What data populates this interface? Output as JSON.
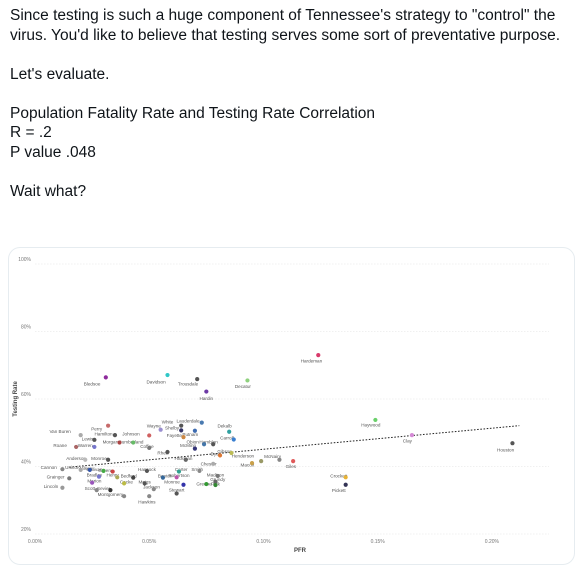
{
  "post": {
    "line1": "Since testing is such a huge component of Tennessee's strategy to \"control\" the virus. You'd like to believe that testing serves some sort of preventative purpose.",
    "line2": "Let's evaluate.",
    "line3": "Population Fatality Rate and Testing Rate Correlation",
    "line4": "R = .2",
    "line5": "P value .048",
    "line6": "Wait what?"
  },
  "chart_data": {
    "type": "scatter",
    "xlabel": "PFR",
    "ylabel": "Testing Rate",
    "xlim": [
      0,
      0.00225
    ],
    "ylim": [
      0.2,
      1.0
    ],
    "x_ticks": [
      0,
      0.0005,
      0.001,
      0.0015,
      0.002
    ],
    "x_tick_labels": [
      "0.00%",
      "0.05%",
      "0.10%",
      "0.15%",
      "0.20%"
    ],
    "y_ticks": [
      0.2,
      0.4,
      0.6,
      0.8,
      1.0
    ],
    "y_tick_labels": [
      "20%",
      "40%",
      "60%",
      "80%",
      "100%"
    ],
    "grid": true,
    "trendline": {
      "style": "dotted",
      "x": [
        0.00015,
        0.00212
      ],
      "y": [
        0.398,
        0.521
      ]
    },
    "points": [
      {
        "name": "Bledsoe",
        "x": 0.00031,
        "y": 0.664,
        "color": "#8e2a9c"
      },
      {
        "name": "Davidson",
        "x": 0.00058,
        "y": 0.671,
        "color": "#2fc7c7"
      },
      {
        "name": "Trousdale",
        "x": 0.00071,
        "y": 0.659,
        "color": "#555555"
      },
      {
        "name": "Decatur",
        "x": 0.00093,
        "y": 0.655,
        "color": "#8fd17e"
      },
      {
        "name": "Hardin",
        "x": 0.00075,
        "y": 0.622,
        "color": "#6d3aa6"
      },
      {
        "name": "Hardeman",
        "x": 0.00124,
        "y": 0.73,
        "color": "#d83a6b"
      },
      {
        "name": "Haywood",
        "x": 0.00149,
        "y": 0.538,
        "color": "#6ad06a"
      },
      {
        "name": "Clay",
        "x": 0.00165,
        "y": 0.493,
        "color": "#d58ad6"
      },
      {
        "name": "Houston",
        "x": 0.00209,
        "y": 0.469,
        "color": "#555555"
      },
      {
        "name": "Crockett",
        "x": 0.00136,
        "y": 0.368,
        "color": "#e8b335"
      },
      {
        "name": "Pickett",
        "x": 0.00136,
        "y": 0.346,
        "color": "#333355"
      },
      {
        "name": "Giles",
        "x": 0.00113,
        "y": 0.416,
        "color": "#e05a5a"
      },
      {
        "name": "McNairy",
        "x": 0.00107,
        "y": 0.42,
        "color": "#888888"
      },
      {
        "name": "Henderson",
        "x": 0.00099,
        "y": 0.416,
        "color": "#999966"
      },
      {
        "name": "Macon",
        "x": 0.00095,
        "y": 0.41,
        "color": "#c9a04a"
      },
      {
        "name": "Carroll",
        "x": 0.00087,
        "y": 0.48,
        "color": "#3a7fd0"
      },
      {
        "name": "Dekalb",
        "x": 0.00085,
        "y": 0.503,
        "color": "#2fa0a0"
      },
      {
        "name": "Lauderdale",
        "x": 0.00073,
        "y": 0.53,
        "color": "#4a7ab0"
      },
      {
        "name": "White",
        "x": 0.00064,
        "y": 0.521,
        "color": "#555555"
      },
      {
        "name": "Shelby",
        "x": 0.00064,
        "y": 0.507,
        "color": "#333366"
      },
      {
        "name": "Putnam",
        "x": 0.0007,
        "y": 0.506,
        "color": "#3d6bb0"
      },
      {
        "name": "Wayne",
        "x": 0.00055,
        "y": 0.509,
        "color": "#9a8fd0"
      },
      {
        "name": "Perry",
        "x": 0.00032,
        "y": 0.521,
        "color": "#c66a6a"
      },
      {
        "name": "Van Buren",
        "x": 0.0002,
        "y": 0.493,
        "color": "#aaaaaa"
      },
      {
        "name": "Hamilton",
        "x": 0.00035,
        "y": 0.493,
        "color": "#555555"
      },
      {
        "name": "Johnson",
        "x": 0.0005,
        "y": 0.492,
        "color": "#d06060"
      },
      {
        "name": "Fayette",
        "x": 0.00065,
        "y": 0.487,
        "color": "#cc8844"
      },
      {
        "name": "Obion",
        "x": 0.00074,
        "y": 0.466,
        "color": "#4477aa"
      },
      {
        "name": "Hamblen",
        "x": 0.00078,
        "y": 0.466,
        "color": "#555555"
      },
      {
        "name": "Lewis",
        "x": 0.00026,
        "y": 0.479,
        "color": "#555555"
      },
      {
        "name": "Morgan",
        "x": 0.00037,
        "y": 0.471,
        "color": "#aa4444"
      },
      {
        "name": "Cumberland",
        "x": 0.00043,
        "y": 0.471,
        "color": "#66bb66"
      },
      {
        "name": "Coffee",
        "x": 0.0005,
        "y": 0.455,
        "color": "#777777"
      },
      {
        "name": "Roane",
        "x": 0.00018,
        "y": 0.458,
        "color": "#aa6666"
      },
      {
        "name": "Warren",
        "x": 0.00026,
        "y": 0.458,
        "color": "#7777cc"
      },
      {
        "name": "Rhea",
        "x": 0.00058,
        "y": 0.443,
        "color": "#555555"
      },
      {
        "name": "McMinn",
        "x": 0.0007,
        "y": 0.453,
        "color": "#333377"
      },
      {
        "name": "Gibson",
        "x": 0.00086,
        "y": 0.44,
        "color": "#bbbb55"
      },
      {
        "name": "Dyer",
        "x": 0.00081,
        "y": 0.433,
        "color": "#dd7733"
      },
      {
        "name": "Anderson",
        "x": 0.00022,
        "y": 0.42,
        "color": "#bbbbbb"
      },
      {
        "name": "Monroe",
        "x": 0.00032,
        "y": 0.42,
        "color": "#555555"
      },
      {
        "name": "Hickman",
        "x": 0.00066,
        "y": 0.42,
        "color": "#666666"
      },
      {
        "name": "Chester",
        "x": 0.00078,
        "y": 0.408,
        "color": "#aaaaaa"
      },
      {
        "name": "Cannon",
        "x": 0.00012,
        "y": 0.392,
        "color": "#888888"
      },
      {
        "name": "Unicoi",
        "x": 0.0002,
        "y": 0.39,
        "color": "#aaaaaa"
      },
      {
        "name": "Wilson",
        "x": 0.00024,
        "y": 0.39,
        "color": "#3355aa"
      },
      {
        "name": "Sullivan",
        "x": 0.0003,
        "y": 0.387,
        "color": "#44aa44"
      },
      {
        "name": "Greene",
        "x": 0.00034,
        "y": 0.385,
        "color": "#cc4444"
      },
      {
        "name": "Hancock",
        "x": 0.00049,
        "y": 0.387,
        "color": "#555555"
      },
      {
        "name": "Carter",
        "x": 0.00063,
        "y": 0.385,
        "color": "#2f9f8f"
      },
      {
        "name": "Smith",
        "x": 0.00072,
        "y": 0.387,
        "color": "#888888"
      },
      {
        "name": "Madison",
        "x": 0.0008,
        "y": 0.372,
        "color": "#777777"
      },
      {
        "name": "Grainger",
        "x": 0.00015,
        "y": 0.365,
        "color": "#777777"
      },
      {
        "name": "Bradley",
        "x": 0.00028,
        "y": 0.37,
        "color": "#7777cc"
      },
      {
        "name": "Henry",
        "x": 0.00036,
        "y": 0.368,
        "color": "#aaaa55"
      },
      {
        "name": "Bedford",
        "x": 0.00043,
        "y": 0.367,
        "color": "#444444"
      },
      {
        "name": "Benton",
        "x": 0.00056,
        "y": 0.367,
        "color": "#336699"
      },
      {
        "name": "Robertson",
        "x": 0.00062,
        "y": 0.368,
        "color": "#bb55aa"
      },
      {
        "name": "Grundy",
        "x": 0.00079,
        "y": 0.355,
        "color": "#666666"
      },
      {
        "name": "Marion",
        "x": 0.00025,
        "y": 0.352,
        "color": "#9955bb"
      },
      {
        "name": "Cocke",
        "x": 0.00039,
        "y": 0.35,
        "color": "#bbbb44"
      },
      {
        "name": "Meigs",
        "x": 0.00048,
        "y": 0.35,
        "color": "#555555"
      },
      {
        "name": "Monroe2",
        "x": 0.00065,
        "y": 0.346,
        "color": "#3333aa"
      },
      {
        "name": "Greene2",
        "x": 0.00075,
        "y": 0.348,
        "color": "#339933"
      },
      {
        "name": "Polk",
        "x": 0.00079,
        "y": 0.345,
        "color": "#338833"
      },
      {
        "name": "Lincoln",
        "x": 0.00012,
        "y": 0.337,
        "color": "#999999"
      },
      {
        "name": "Scott",
        "x": 0.00027,
        "y": 0.33,
        "color": "#888888"
      },
      {
        "name": "Sevier",
        "x": 0.00033,
        "y": 0.33,
        "color": "#333333"
      },
      {
        "name": "Jackson",
        "x": 0.00052,
        "y": 0.333,
        "color": "#888888"
      },
      {
        "name": "Stewart",
        "x": 0.00062,
        "y": 0.32,
        "color": "#555555"
      },
      {
        "name": "Montgomery",
        "x": 0.00039,
        "y": 0.312,
        "color": "#888888"
      },
      {
        "name": "Hawkins",
        "x": 0.0005,
        "y": 0.312,
        "color": "#888888"
      }
    ],
    "labels": [
      {
        "text": "Bledsoe",
        "x": 0.00025,
        "y": 0.64
      },
      {
        "text": "Davidson",
        "x": 0.00053,
        "y": 0.646
      },
      {
        "text": "Trousdale",
        "x": 0.00067,
        "y": 0.64
      },
      {
        "text": "Decatur",
        "x": 0.00091,
        "y": 0.632
      },
      {
        "text": "Hardin",
        "x": 0.00075,
        "y": 0.597
      },
      {
        "text": "Hardeman",
        "x": 0.00121,
        "y": 0.708
      },
      {
        "text": "Haywood",
        "x": 0.00147,
        "y": 0.518
      },
      {
        "text": "Clay",
        "x": 0.00163,
        "y": 0.471
      },
      {
        "text": "Houston",
        "x": 0.00206,
        "y": 0.445
      },
      {
        "text": "Crockett",
        "x": 0.00133,
        "y": 0.367
      },
      {
        "text": "Pickett",
        "x": 0.00133,
        "y": 0.325
      },
      {
        "text": "Giles",
        "x": 0.00112,
        "y": 0.395
      },
      {
        "text": "McNairy",
        "x": 0.00104,
        "y": 0.425
      },
      {
        "text": "Henderson",
        "x": 0.00091,
        "y": 0.426
      },
      {
        "text": "Macon",
        "x": 0.00093,
        "y": 0.4
      },
      {
        "text": "Carroll",
        "x": 0.00084,
        "y": 0.48
      },
      {
        "text": "Dekalb",
        "x": 0.00083,
        "y": 0.516
      },
      {
        "text": "Lauderdale",
        "x": 0.00067,
        "y": 0.53
      },
      {
        "text": "White",
        "x": 0.00058,
        "y": 0.528
      },
      {
        "text": "Shelby",
        "x": 0.0006,
        "y": 0.51
      },
      {
        "text": "Putnam",
        "x": 0.00068,
        "y": 0.491
      },
      {
        "text": "Wayne",
        "x": 0.00052,
        "y": 0.516
      },
      {
        "text": "Perry",
        "x": 0.00027,
        "y": 0.507
      },
      {
        "text": "Van Buren",
        "x": 0.00011,
        "y": 0.499
      },
      {
        "text": "Hamilton",
        "x": 0.0003,
        "y": 0.492
      },
      {
        "text": "Johnson",
        "x": 0.00042,
        "y": 0.492
      },
      {
        "text": "Fayette",
        "x": 0.00061,
        "y": 0.487
      },
      {
        "text": "Obion",
        "x": 0.00069,
        "y": 0.468
      },
      {
        "text": "Hamblen",
        "x": 0.00076,
        "y": 0.468
      },
      {
        "text": "Lewis",
        "x": 0.00023,
        "y": 0.477
      },
      {
        "text": "Morgan",
        "x": 0.00033,
        "y": 0.468
      },
      {
        "text": "Cumberland",
        "x": 0.00042,
        "y": 0.468
      },
      {
        "text": "Coffee",
        "x": 0.00049,
        "y": 0.455
      },
      {
        "text": "Roane",
        "x": 0.00011,
        "y": 0.458
      },
      {
        "text": "Warren",
        "x": 0.00022,
        "y": 0.458
      },
      {
        "text": "Rhea",
        "x": 0.00056,
        "y": 0.435
      },
      {
        "text": "McMinn",
        "x": 0.00067,
        "y": 0.458
      },
      {
        "text": "Gibson",
        "x": 0.00083,
        "y": 0.44
      },
      {
        "text": "Dyer",
        "x": 0.00079,
        "y": 0.432
      },
      {
        "text": "Anderson",
        "x": 0.00018,
        "y": 0.42
      },
      {
        "text": "Monroe",
        "x": 0.00028,
        "y": 0.42
      },
      {
        "text": "Hickman",
        "x": 0.00065,
        "y": 0.42
      },
      {
        "text": "Chester",
        "x": 0.00076,
        "y": 0.403
      },
      {
        "text": "Cannon",
        "x": 6e-05,
        "y": 0.392
      },
      {
        "text": "Unicoi",
        "x": 0.00016,
        "y": 0.392
      },
      {
        "text": "Wilson",
        "x": 0.00022,
        "y": 0.39
      },
      {
        "text": "Sullivan",
        "x": 0.00026,
        "y": 0.387
      },
      {
        "text": "Greene",
        "x": 0.00031,
        "y": 0.384
      },
      {
        "text": "Hancock",
        "x": 0.00049,
        "y": 0.387
      },
      {
        "text": "Carter",
        "x": 0.00064,
        "y": 0.387
      },
      {
        "text": "Smith",
        "x": 0.00071,
        "y": 0.387
      },
      {
        "text": "Madison",
        "x": 0.00079,
        "y": 0.37
      },
      {
        "text": "Grainger",
        "x": 9e-05,
        "y": 0.365
      },
      {
        "text": "Bradley",
        "x": 0.00026,
        "y": 0.37
      },
      {
        "text": "Henry",
        "x": 0.00034,
        "y": 0.37
      },
      {
        "text": "Bedford",
        "x": 0.00041,
        "y": 0.367
      },
      {
        "text": "Benton",
        "x": 0.00057,
        "y": 0.367
      },
      {
        "text": "Robertson",
        "x": 0.00063,
        "y": 0.369
      },
      {
        "text": "Grundy",
        "x": 0.0008,
        "y": 0.357
      },
      {
        "text": "Marion",
        "x": 0.00026,
        "y": 0.352
      },
      {
        "text": "Cocke",
        "x": 0.0004,
        "y": 0.35
      },
      {
        "text": "Meigs",
        "x": 0.00048,
        "y": 0.35
      },
      {
        "text": "Monroe",
        "x": 0.0006,
        "y": 0.35
      },
      {
        "text": "Greene",
        "x": 0.00074,
        "y": 0.343
      },
      {
        "text": "Polk",
        "x": 0.00079,
        "y": 0.343
      },
      {
        "text": "Lincoln",
        "x": 7e-05,
        "y": 0.337
      },
      {
        "text": "Scott",
        "x": 0.00024,
        "y": 0.33
      },
      {
        "text": "Sevier",
        "x": 0.0003,
        "y": 0.33
      },
      {
        "text": "Jackson",
        "x": 0.00051,
        "y": 0.335
      },
      {
        "text": "Stewart",
        "x": 0.00062,
        "y": 0.326
      },
      {
        "text": "Montgomery",
        "x": 0.00033,
        "y": 0.312
      },
      {
        "text": "Hawkins",
        "x": 0.00049,
        "y": 0.29
      }
    ]
  }
}
